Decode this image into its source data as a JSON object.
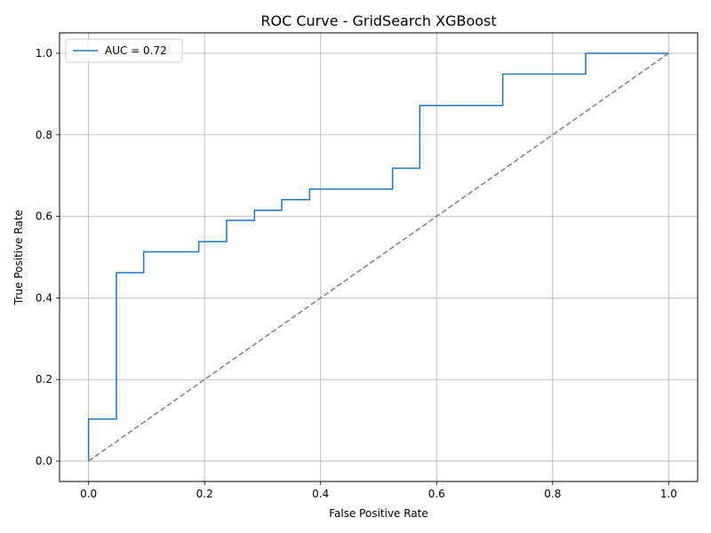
{
  "chart_data": {
    "type": "line",
    "title": "ROC Curve - GridSearch XGBoost",
    "xlabel": "False Positive Rate",
    "ylabel": "True Positive Rate",
    "xlim": [
      -0.05,
      1.05
    ],
    "ylim": [
      -0.05,
      1.05
    ],
    "grid": true,
    "legend_position": "top-left",
    "x_ticks": [
      {
        "value": 0.0,
        "label": "0.0"
      },
      {
        "value": 0.2,
        "label": "0.2"
      },
      {
        "value": 0.4,
        "label": "0.4"
      },
      {
        "value": 0.6,
        "label": "0.6"
      },
      {
        "value": 0.8,
        "label": "0.8"
      },
      {
        "value": 1.0,
        "label": "1.0"
      }
    ],
    "y_ticks": [
      {
        "value": 0.0,
        "label": "0.0"
      },
      {
        "value": 0.2,
        "label": "0.2"
      },
      {
        "value": 0.4,
        "label": "0.4"
      },
      {
        "value": 0.6,
        "label": "0.6"
      },
      {
        "value": 0.8,
        "label": "0.8"
      },
      {
        "value": 1.0,
        "label": "1.0"
      }
    ],
    "series": [
      {
        "name": "AUC = 0.72",
        "color": "#1f77b4",
        "style": "solid",
        "x": [
          0.0,
          0.0,
          0.048,
          0.048,
          0.095,
          0.095,
          0.19,
          0.19,
          0.238,
          0.238,
          0.286,
          0.286,
          0.333,
          0.333,
          0.381,
          0.381,
          0.524,
          0.524,
          0.571,
          0.571,
          0.714,
          0.714,
          0.857,
          0.857,
          1.0
        ],
        "y": [
          0.0,
          0.103,
          0.103,
          0.462,
          0.462,
          0.513,
          0.513,
          0.538,
          0.538,
          0.59,
          0.59,
          0.615,
          0.615,
          0.641,
          0.641,
          0.667,
          0.667,
          0.718,
          0.718,
          0.872,
          0.872,
          0.949,
          0.949,
          1.0,
          1.0
        ]
      },
      {
        "color": "#808080",
        "style": "dashed",
        "x": [
          0.0,
          1.0
        ],
        "y": [
          0.0,
          1.0
        ]
      }
    ],
    "legend": {
      "entries": [
        {
          "label": "AUC = 0.72",
          "color": "#1f77b4"
        }
      ]
    }
  }
}
